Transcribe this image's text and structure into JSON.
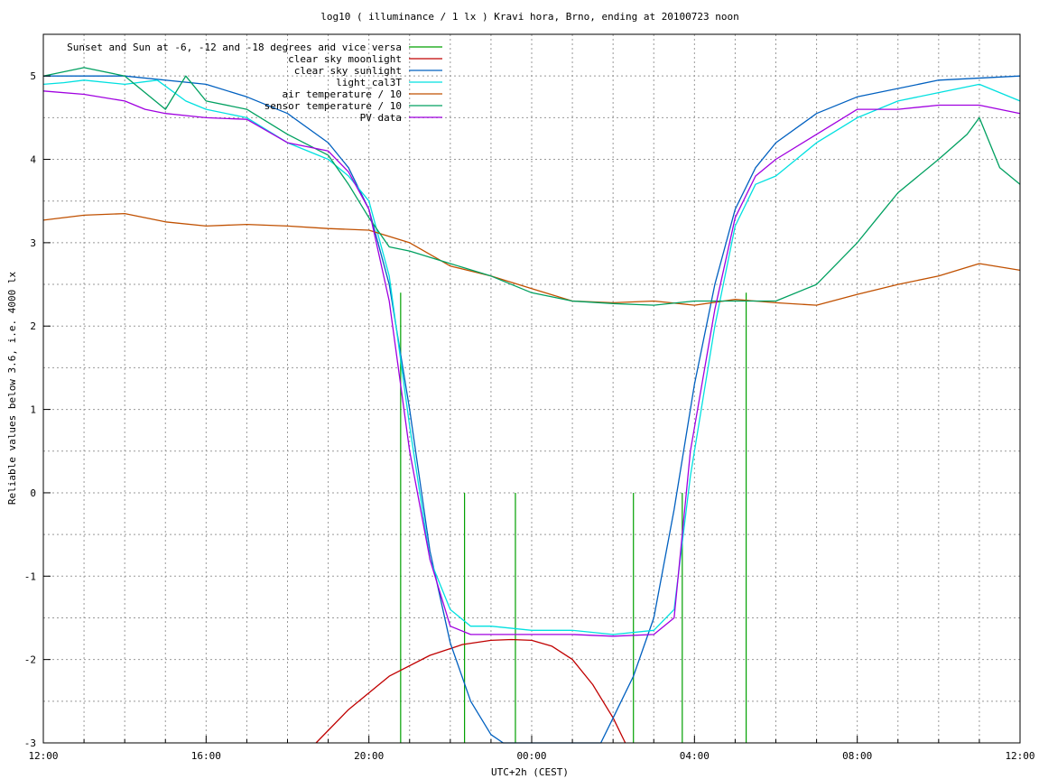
{
  "chart_data": {
    "type": "line",
    "title": "log10 ( illuminance / 1 lx ) Kravi hora, Brno, ending at 20100723 noon",
    "xlabel": "UTC+2h (CEST)",
    "ylabel": "Reliable values below 3.6, i.e. 4000 lx",
    "x_unit": "hours since 12:00 (UTC+2h)",
    "xlim": [
      0,
      24
    ],
    "ylim": [
      -3,
      5.5
    ],
    "x_ticks": [
      {
        "x": 0,
        "label": "12:00"
      },
      {
        "x": 4,
        "label": "16:00"
      },
      {
        "x": 8,
        "label": "20:00"
      },
      {
        "x": 12,
        "label": "00:00"
      },
      {
        "x": 16,
        "label": "04:00"
      },
      {
        "x": 20,
        "label": "08:00"
      },
      {
        "x": 24,
        "label": "12:00"
      }
    ],
    "y_ticks": [
      5,
      4,
      3,
      2,
      1,
      0,
      -1,
      -2,
      -3
    ],
    "grid": true,
    "legend_position": "top-left",
    "series": [
      {
        "name": "Sunset and Sun at -6, -12 and -18 degrees and vice versa",
        "color": "#00a000",
        "kind": "vlines",
        "x": [
          8.78,
          10.35,
          11.6,
          14.5,
          15.7,
          17.27
        ],
        "y": [
          2.4,
          0,
          0,
          0,
          0,
          2.4
        ]
      },
      {
        "name": "clear sky moonlight",
        "color": "#c00000",
        "kind": "line",
        "x": [
          6.7,
          7.5,
          8.5,
          9.5,
          10.3,
          11.0,
          11.5,
          12.0,
          12.5,
          13.0,
          13.5,
          14.0,
          14.3
        ],
        "y": [
          -3,
          -2.6,
          -2.2,
          -1.95,
          -1.82,
          -1.77,
          -1.76,
          -1.77,
          -1.84,
          -2.0,
          -2.3,
          -2.7,
          -3
        ]
      },
      {
        "name": "clear sky sunlight",
        "color": "#0060c0",
        "kind": "line",
        "x": [
          0,
          2,
          4,
          5,
          6,
          7,
          7.5,
          8,
          8.5,
          9,
          9.5,
          10,
          10.5,
          11,
          11.3,
          13.7,
          14,
          14.5,
          15,
          15.5,
          16,
          16.5,
          17,
          17.5,
          18,
          19,
          20,
          22,
          24
        ],
        "y": [
          5.0,
          5.0,
          4.9,
          4.75,
          4.55,
          4.2,
          3.9,
          3.4,
          2.5,
          1.0,
          -0.7,
          -1.8,
          -2.5,
          -2.9,
          -3,
          -3,
          -2.7,
          -2.2,
          -1.5,
          -0.2,
          1.3,
          2.5,
          3.4,
          3.9,
          4.2,
          4.55,
          4.75,
          4.95,
          5.0
        ]
      },
      {
        "name": "light_cal3T",
        "color": "#00e0e0",
        "kind": "line",
        "x": [
          0,
          0.5,
          1,
          2,
          2.8,
          3.5,
          4,
          5,
          6,
          7,
          7.5,
          8,
          8.5,
          9,
          9.5,
          10,
          10.5,
          11,
          12,
          13,
          14,
          15,
          15.5,
          15.9,
          16.5,
          17,
          17.5,
          18,
          19,
          20,
          21,
          22,
          23,
          24
        ],
        "y": [
          4.9,
          4.92,
          4.95,
          4.9,
          4.95,
          4.7,
          4.6,
          4.5,
          4.2,
          4.0,
          3.8,
          3.5,
          2.6,
          0.8,
          -0.8,
          -1.4,
          -1.6,
          -1.6,
          -1.65,
          -1.65,
          -1.7,
          -1.65,
          -1.4,
          0.2,
          2.0,
          3.2,
          3.7,
          3.8,
          4.2,
          4.5,
          4.7,
          4.8,
          4.9,
          4.7
        ]
      },
      {
        "name": "air temperature / 10",
        "color": "#c05000",
        "kind": "line",
        "x": [
          0,
          1,
          2,
          3,
          4,
          5,
          6,
          7,
          8,
          9,
          10,
          11,
          12,
          13,
          14,
          15,
          16,
          17,
          18,
          19,
          20,
          21,
          22,
          23,
          24
        ],
        "y": [
          3.27,
          3.33,
          3.35,
          3.25,
          3.2,
          3.22,
          3.2,
          3.17,
          3.15,
          3.0,
          2.72,
          2.6,
          2.45,
          2.3,
          2.28,
          2.3,
          2.25,
          2.32,
          2.28,
          2.25,
          2.38,
          2.5,
          2.6,
          2.75,
          2.67
        ]
      },
      {
        "name": "sensor temperature / 10",
        "color": "#00a060",
        "kind": "line",
        "x": [
          0,
          1,
          2,
          2.5,
          3,
          3.5,
          4,
          5,
          6,
          7,
          7.5,
          8,
          8.5,
          9,
          10,
          11,
          12,
          13,
          14,
          15,
          16,
          17,
          18,
          19,
          20,
          20.5,
          21,
          22,
          22.7,
          23,
          23.5,
          24
        ],
        "y": [
          5.0,
          5.1,
          5.0,
          4.8,
          4.6,
          5.0,
          4.7,
          4.6,
          4.3,
          4.05,
          3.7,
          3.3,
          2.95,
          2.9,
          2.75,
          2.6,
          2.4,
          2.3,
          2.27,
          2.25,
          2.3,
          2.3,
          2.3,
          2.5,
          3.0,
          3.3,
          3.6,
          4.0,
          4.3,
          4.5,
          3.9,
          3.7
        ]
      },
      {
        "name": "PV data",
        "color": "#a000e0",
        "kind": "line",
        "x": [
          0,
          1,
          2,
          2.5,
          3,
          4,
          5,
          6,
          7,
          7.5,
          8,
          8.5,
          9,
          9.5,
          10,
          10.5,
          11,
          12,
          13,
          14,
          15,
          15.5,
          15.9,
          16.5,
          17,
          17.5,
          18,
          19,
          20,
          21,
          22,
          23,
          24
        ],
        "y": [
          4.82,
          4.78,
          4.7,
          4.6,
          4.55,
          4.5,
          4.48,
          4.2,
          4.1,
          3.85,
          3.4,
          2.3,
          0.5,
          -0.8,
          -1.6,
          -1.7,
          -1.7,
          -1.7,
          -1.7,
          -1.72,
          -1.7,
          -1.5,
          0.5,
          2.2,
          3.3,
          3.8,
          4.0,
          4.3,
          4.6,
          4.6,
          4.65,
          4.65,
          4.55
        ]
      }
    ]
  }
}
